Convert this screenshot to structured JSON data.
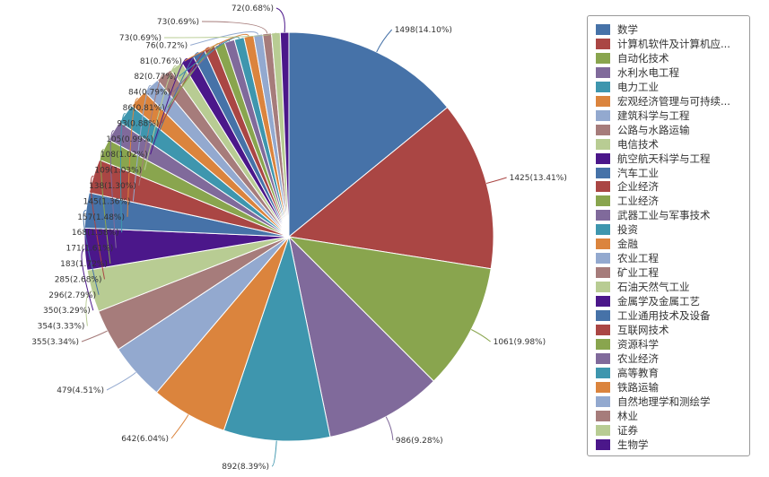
{
  "chart_data": {
    "type": "pie",
    "slices": [
      {
        "name": "数学",
        "value": 1498,
        "pct": "14.10%",
        "color": "#4672a8"
      },
      {
        "name": "计算机软件及计算机应...",
        "value": 1425,
        "pct": "13.41%",
        "color": "#aa4644"
      },
      {
        "name": "自动化技术",
        "value": 1061,
        "pct": "9.98%",
        "color": "#89a54e"
      },
      {
        "name": "水利水电工程",
        "value": 986,
        "pct": "9.28%",
        "color": "#806a9b"
      },
      {
        "name": "电力工业",
        "value": 892,
        "pct": "8.39%",
        "color": "#3e96ae"
      },
      {
        "name": "宏观经济管理与可持续...",
        "value": 642,
        "pct": "6.04%",
        "color": "#db843d"
      },
      {
        "name": "建筑科学与工程",
        "value": 479,
        "pct": "4.51%",
        "color": "#93a9cf"
      },
      {
        "name": "公路与水路运输",
        "value": 355,
        "pct": "3.34%",
        "color": "#a67c7b"
      },
      {
        "name": "电信技术",
        "value": 354,
        "pct": "3.33%",
        "color": "#b8cc93"
      },
      {
        "name": "航空航天科学与工程",
        "value": 350,
        "pct": "3.29%",
        "color": "#4b178a"
      },
      {
        "name": "汽车工业",
        "value": 296,
        "pct": "2.79%",
        "color": "#4672a8"
      },
      {
        "name": "企业经济",
        "value": 285,
        "pct": "2.68%",
        "color": "#aa4644"
      },
      {
        "name": "工业经济",
        "value": 183,
        "pct": "1.72%",
        "color": "#89a54e"
      },
      {
        "name": "武器工业与军事技术",
        "value": 171,
        "pct": "1.61%",
        "color": "#806a9b"
      },
      {
        "name": "投资",
        "value": 168,
        "pct": "1.58%",
        "color": "#3e96ae"
      },
      {
        "name": "金融",
        "value": 157,
        "pct": "1.48%",
        "color": "#db843d"
      },
      {
        "name": "农业工程",
        "value": 145,
        "pct": "1.36%",
        "color": "#93a9cf"
      },
      {
        "name": "矿业工程",
        "value": 138,
        "pct": "1.30%",
        "color": "#a67c7b"
      },
      {
        "name": "石油天然气工业",
        "value": 109,
        "pct": "1.03%",
        "color": "#b8cc93"
      },
      {
        "name": "金属学及金属工艺",
        "value": 108,
        "pct": "1.02%",
        "color": "#4b178a"
      },
      {
        "name": "工业通用技术及设备",
        "value": 105,
        "pct": "0.99%",
        "color": "#4672a8"
      },
      {
        "name": "互联网技术",
        "value": 93,
        "pct": "0.88%",
        "color": "#aa4644"
      },
      {
        "name": "资源科学",
        "value": 86,
        "pct": "0.81%",
        "color": "#89a54e"
      },
      {
        "name": "农业经济",
        "value": 84,
        "pct": "0.79%",
        "color": "#806a9b"
      },
      {
        "name": "高等教育",
        "value": 82,
        "pct": "0.77%",
        "color": "#3e96ae"
      },
      {
        "name": "铁路运输",
        "value": 81,
        "pct": "0.76%",
        "color": "#db843d"
      },
      {
        "name": "自然地理学和测绘学",
        "value": 76,
        "pct": "0.72%",
        "color": "#93a9cf"
      },
      {
        "name": "林业",
        "value": 73,
        "pct": "0.69%",
        "color": "#a67c7b"
      },
      {
        "name": "证券",
        "value": 73,
        "pct": "0.69%",
        "color": "#b8cc93"
      },
      {
        "name": "生物学",
        "value": 72,
        "pct": "0.68%",
        "color": "#4b178a"
      }
    ],
    "legend_position": "right"
  }
}
